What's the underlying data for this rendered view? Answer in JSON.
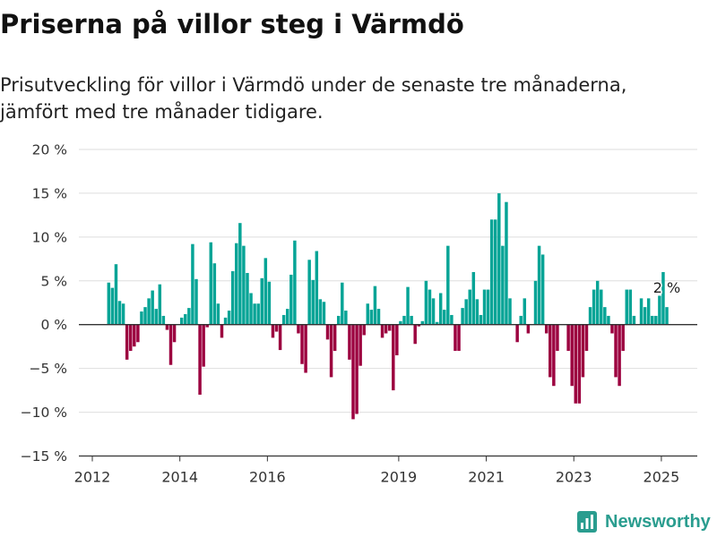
{
  "title": "Priserna på villor steg i Värmdö",
  "subtitle": "Prisutveckling för villor i Värmdö under de senaste tre månaderna, jämfört med tre månader tidigare.",
  "logo": {
    "text": "Newsworthy",
    "icon": "bar-chart-logo-icon",
    "color": "#2a9d8f"
  },
  "chart_data": {
    "type": "bar",
    "x": [
      "2012-05",
      "2012-06",
      "2012-07",
      "2012-08",
      "2012-09",
      "2012-10",
      "2012-11",
      "2012-12",
      "2013-01",
      "2013-02",
      "2013-03",
      "2013-04",
      "2013-05",
      "2013-06",
      "2013-07",
      "2013-08",
      "2013-09",
      "2013-10",
      "2013-11",
      "2013-12",
      "2014-01",
      "2014-02",
      "2014-03",
      "2014-04",
      "2014-05",
      "2014-06",
      "2014-07",
      "2014-08",
      "2014-09",
      "2014-10",
      "2014-11",
      "2014-12",
      "2015-01",
      "2015-02",
      "2015-03",
      "2015-04",
      "2015-05",
      "2015-06",
      "2015-07",
      "2015-08",
      "2015-09",
      "2015-10",
      "2015-11",
      "2015-12",
      "2016-01",
      "2016-02",
      "2016-03",
      "2016-04",
      "2016-05",
      "2016-06",
      "2016-07",
      "2016-08",
      "2016-09",
      "2016-10",
      "2016-11",
      "2016-12",
      "2017-01",
      "2017-02",
      "2017-03",
      "2017-04",
      "2017-05",
      "2017-06",
      "2017-07",
      "2017-08",
      "2017-09",
      "2017-10",
      "2017-11",
      "2017-12",
      "2018-01",
      "2018-02",
      "2018-03",
      "2018-04",
      "2018-05",
      "2018-06",
      "2018-07",
      "2018-08",
      "2018-09",
      "2018-10",
      "2018-11",
      "2018-12",
      "2019-01",
      "2019-02",
      "2019-03",
      "2019-04",
      "2019-05",
      "2019-06",
      "2019-07",
      "2019-08",
      "2019-09",
      "2019-10",
      "2019-11",
      "2019-12",
      "2020-01",
      "2020-02",
      "2020-03",
      "2020-04",
      "2020-05",
      "2020-06",
      "2020-07",
      "2020-08",
      "2020-09",
      "2020-10",
      "2020-11",
      "2020-12",
      "2021-01",
      "2021-02",
      "2021-03",
      "2021-04",
      "2021-05",
      "2021-06",
      "2021-07",
      "2021-08",
      "2021-09",
      "2021-10",
      "2021-11",
      "2021-12",
      "2022-01",
      "2022-02",
      "2022-03",
      "2022-04",
      "2022-05",
      "2022-06",
      "2022-07",
      "2022-08",
      "2022-09",
      "2022-10",
      "2022-11",
      "2022-12",
      "2023-01",
      "2023-02",
      "2023-03",
      "2023-04",
      "2023-05",
      "2023-06",
      "2023-07",
      "2023-08",
      "2023-09",
      "2023-10",
      "2023-11",
      "2023-12",
      "2024-01",
      "2024-02",
      "2024-03",
      "2024-04",
      "2024-05",
      "2024-06",
      "2024-07",
      "2024-08",
      "2024-09",
      "2024-10",
      "2024-11",
      "2024-12",
      "2025-01",
      "2025-02"
    ],
    "values": [
      4.8,
      4.2,
      6.9,
      2.7,
      2.4,
      -4.0,
      -3.0,
      -2.5,
      -2.0,
      1.5,
      2.0,
      3.0,
      3.9,
      1.8,
      4.6,
      1.0,
      -0.6,
      -4.6,
      -2.0,
      0.0,
      0.8,
      1.2,
      1.9,
      9.2,
      5.2,
      -8.0,
      -4.8,
      -0.3,
      9.4,
      7.0,
      2.4,
      -1.5,
      0.8,
      1.6,
      6.1,
      9.3,
      11.6,
      9.0,
      5.9,
      3.6,
      2.4,
      2.4,
      5.3,
      7.6,
      4.9,
      -1.5,
      -0.8,
      -2.9,
      1.1,
      1.8,
      5.7,
      9.6,
      -1.0,
      -4.5,
      -5.5,
      7.4,
      5.1,
      8.4,
      2.9,
      2.6,
      -1.7,
      -6.0,
      -3.0,
      1.0,
      4.8,
      1.6,
      -4.0,
      -10.8,
      -10.2,
      -4.7,
      -1.2,
      2.4,
      1.7,
      4.4,
      1.8,
      -1.5,
      -1.0,
      -0.7,
      -7.5,
      -3.5,
      0.4,
      1.0,
      4.3,
      1.0,
      -2.2,
      -0.2,
      0.4,
      5.0,
      4.0,
      3.0,
      0.3,
      3.6,
      1.7,
      9.0,
      1.1,
      -3.0,
      -3.0,
      1.9,
      2.9,
      4.0,
      6.0,
      2.9,
      1.1,
      4.0,
      4.0,
      12.0,
      12.0,
      15.0,
      9.0,
      14.0,
      3.0,
      0.0,
      -2.0,
      1.0,
      3.0,
      -1.0,
      0.0,
      5.0,
      9.0,
      8.0,
      -1.0,
      -6.0,
      -7.0,
      -3.0,
      0.0,
      0.0,
      -3.0,
      -7.0,
      -9.0,
      -9.0,
      -6.0,
      -3.0,
      2.0,
      4.0,
      5.0,
      4.0,
      2.0,
      1.0,
      -1.0,
      -6.0,
      -7.0,
      -3.0,
      4.0,
      4.0,
      1.0,
      0.0,
      3.0,
      2.0,
      3.0,
      1.0,
      1.0,
      3.3,
      6.0,
      2.0
    ],
    "ylim": [
      -15,
      20
    ],
    "yticks": [
      20,
      15,
      10,
      5,
      0,
      -5,
      -10,
      -15
    ],
    "ytick_labels": [
      "20 %",
      "15 %",
      "10 %",
      "5 %",
      "0 %",
      "−5 %",
      "−10 %",
      "−15 %"
    ],
    "xticks": [
      "2012",
      "2014",
      "2016",
      "2019",
      "2021",
      "2023",
      "2025"
    ],
    "grid": true,
    "annotation": {
      "text": "2 %",
      "x": "2025-02",
      "value": 2
    },
    "colors": {
      "positive": "#06a496",
      "negative": "#9c003f",
      "grid": "#dedede",
      "axis": "#333333"
    }
  }
}
